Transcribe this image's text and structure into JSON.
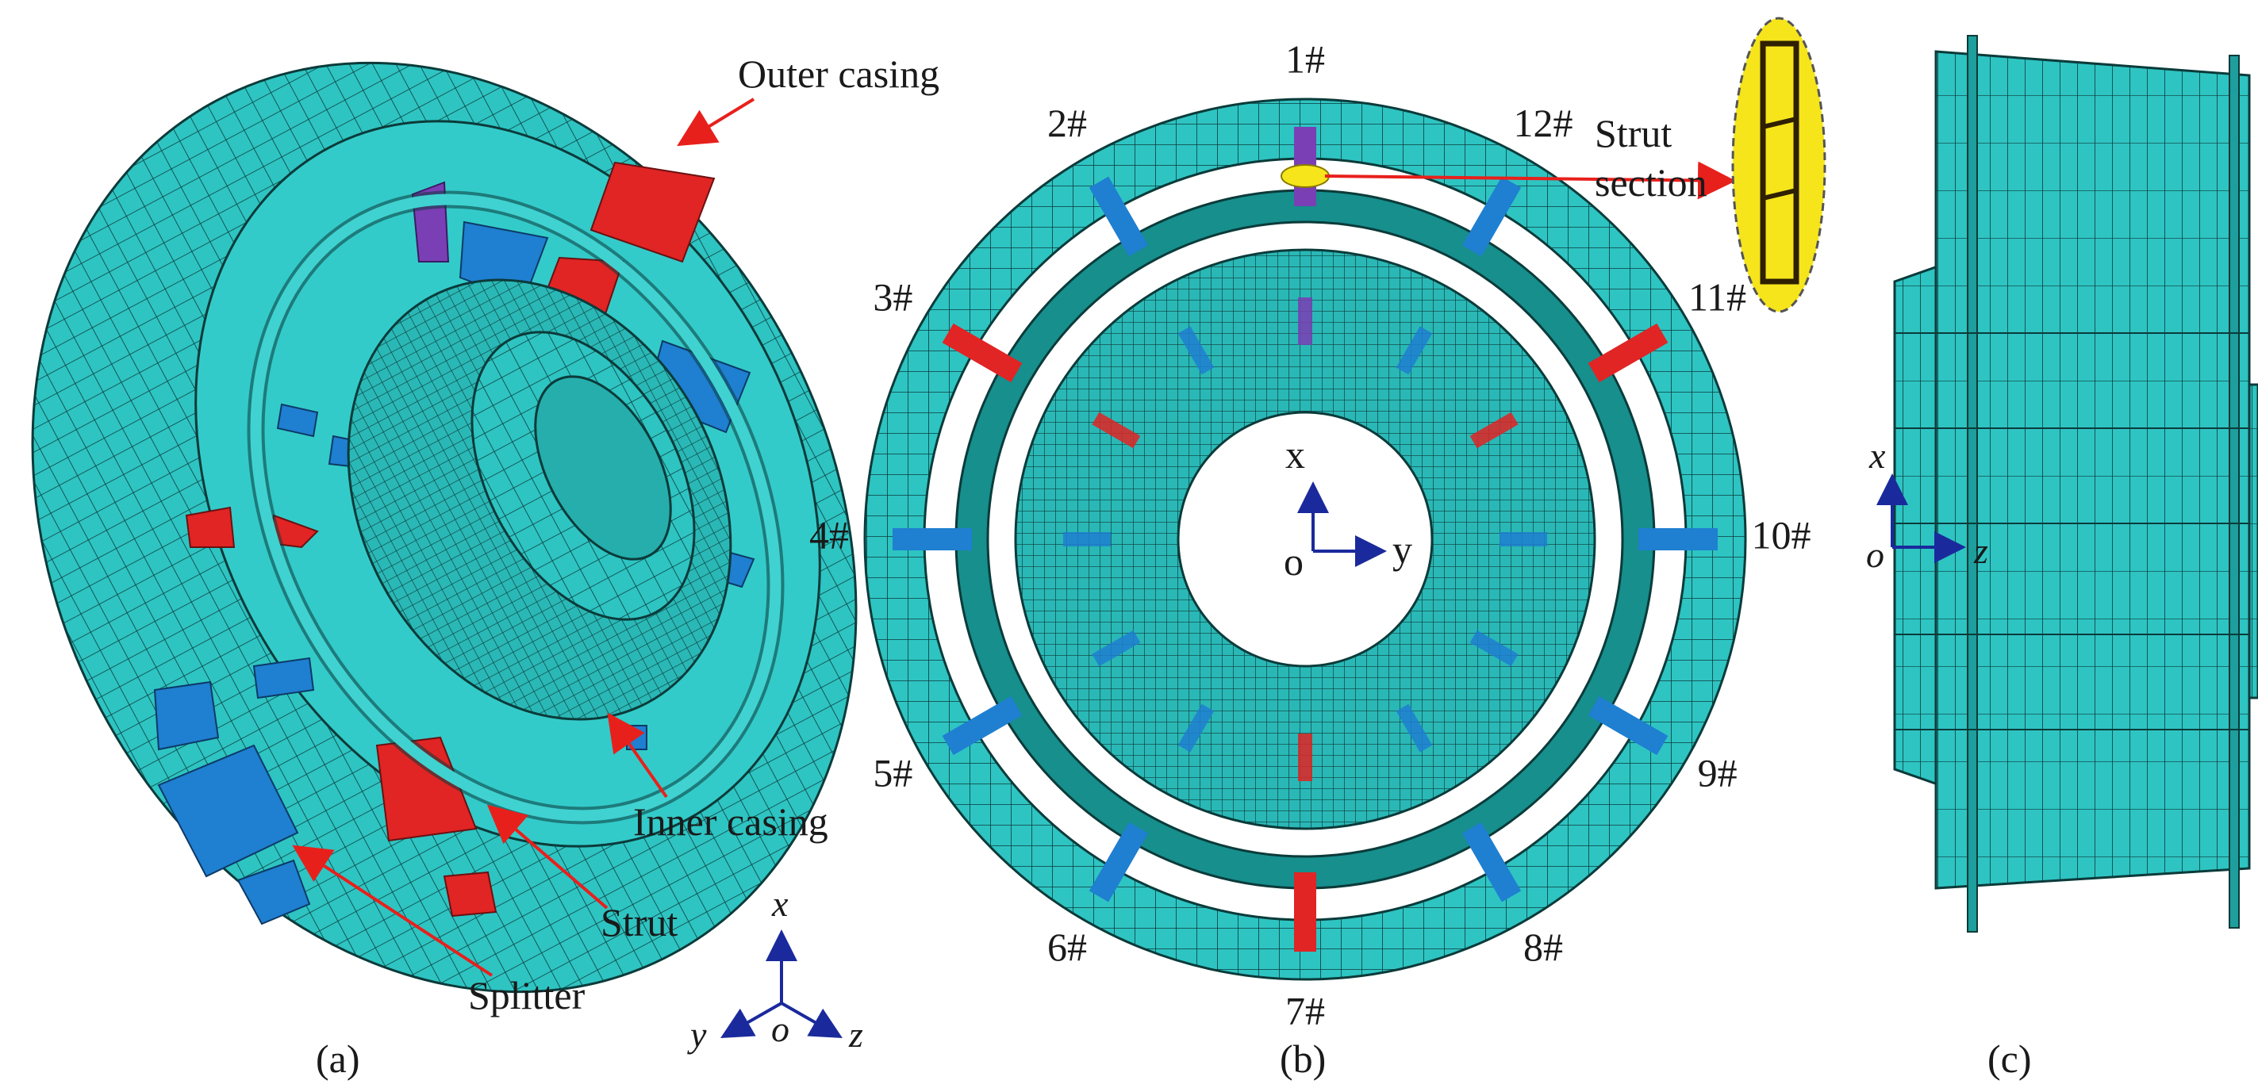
{
  "panel_a": {
    "caption": "(a)",
    "labels": {
      "outer_casing": "Outer casing",
      "inner_casing": "Inner casing",
      "strut": "Strut",
      "splitter": "Splitter"
    },
    "axes": {
      "x": "x",
      "y": "y",
      "z": "z",
      "o": "o"
    }
  },
  "panel_b": {
    "caption": "(b)",
    "strut_numbers": [
      "1#",
      "2#",
      "3#",
      "4#",
      "5#",
      "6#",
      "7#",
      "8#",
      "9#",
      "10#",
      "11#",
      "12#"
    ],
    "strut_section_label": [
      "Strut",
      "section"
    ],
    "axes": {
      "x": "x",
      "y": "y",
      "o": "o"
    }
  },
  "panel_c": {
    "caption": "(c)",
    "axes": {
      "x": "x",
      "z": "z",
      "o": "o"
    }
  },
  "colors": {
    "mesh_fill": "#2ec4c2",
    "mesh_fill_light": "#40d2d0",
    "mesh_fill_dark": "#168f8d",
    "mesh_line": "#0b3b3a",
    "strut_red": "#e12424",
    "strut_blue": "#1f7fd1",
    "strut_purple": "#7a3fb5",
    "highlight_yellow": "#f6e51b",
    "arrow_red": "#e8201c",
    "axis_blue": "#1a2a9c"
  }
}
